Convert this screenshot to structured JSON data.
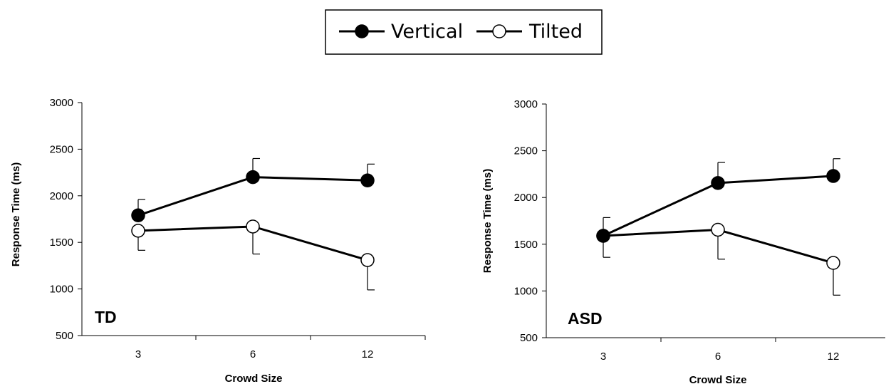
{
  "legend": [
    {
      "name": "Vertical",
      "marker": "filled"
    },
    {
      "name": "Tilted",
      "marker": "open"
    }
  ],
  "colors": {
    "line": "#000000",
    "filled_marker": "#000000",
    "open_marker": "#ffffff"
  },
  "chart_data": [
    {
      "type": "line",
      "panel_label": "TD",
      "categories": [
        "3",
        "6",
        "12"
      ],
      "xlabel": "Crowd Size",
      "ylabel": "Response Time (ms)",
      "ylim": [
        500,
        3000
      ],
      "yticks": [
        "500",
        "1000",
        "1500",
        "2000",
        "2500",
        "3000"
      ],
      "grid": false,
      "series": [
        {
          "name": "Vertical",
          "values": [
            1790,
            2200,
            2165
          ],
          "error_up": [
            170,
            200,
            175
          ],
          "error_down": [
            0,
            0,
            0
          ]
        },
        {
          "name": "Tilted",
          "values": [
            1625,
            1670,
            1310
          ],
          "error_up": [
            0,
            0,
            0
          ],
          "error_down": [
            210,
            295,
            320
          ]
        }
      ]
    },
    {
      "type": "line",
      "panel_label": "ASD",
      "categories": [
        "3",
        "6",
        "12"
      ],
      "xlabel": "Crowd Size",
      "ylabel": "Response Time (ms)",
      "ylim": [
        500,
        3000
      ],
      "yticks": [
        "500",
        "1000",
        "1500",
        "2000",
        "2500",
        "3000"
      ],
      "grid": false,
      "series": [
        {
          "name": "Vertical",
          "values": [
            1590,
            2155,
            2230
          ],
          "error_up": [
            195,
            220,
            185
          ],
          "error_down": [
            0,
            0,
            0
          ]
        },
        {
          "name": "Tilted",
          "values": [
            1590,
            1655,
            1300
          ],
          "error_up": [
            0,
            0,
            0
          ],
          "error_down": [
            230,
            315,
            345
          ]
        }
      ]
    }
  ]
}
